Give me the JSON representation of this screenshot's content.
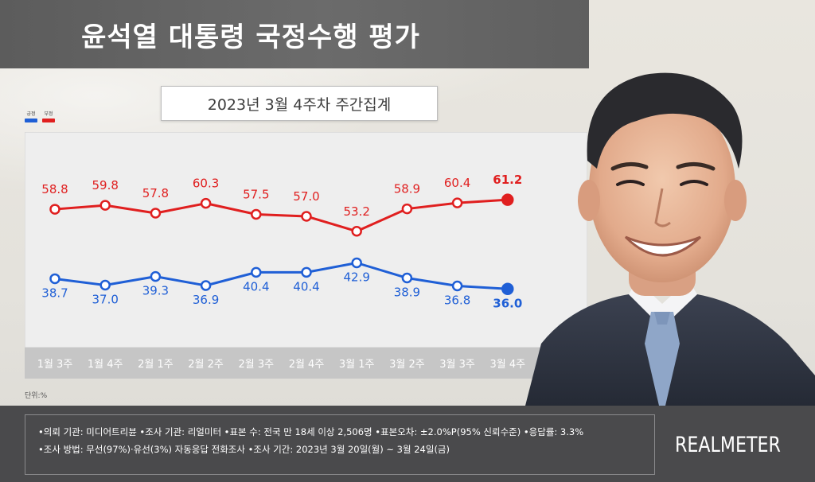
{
  "header": {
    "title": "윤석열 대통령 국정수행 평가",
    "subtitle": "2023년 3월 4주차 주간집계"
  },
  "legend": {
    "positive_label": "긍정",
    "negative_label": "부정"
  },
  "colors": {
    "positive": "#1f5fd6",
    "negative": "#e01f1f",
    "axis_band": "#c6c6c6"
  },
  "unit_label": "단위:%",
  "chart_data": {
    "type": "line",
    "categories": [
      "1월 3주",
      "1월 4주",
      "2월 1주",
      "2월 2주",
      "2월 3주",
      "2월 4주",
      "3월 1주",
      "3월 2주",
      "3월 3주",
      "3월 4주"
    ],
    "series": [
      {
        "name": "부정",
        "color": "#e01f1f",
        "values": [
          58.8,
          59.8,
          57.8,
          60.3,
          57.5,
          57.0,
          53.2,
          58.9,
          60.4,
          61.2
        ]
      },
      {
        "name": "긍정",
        "color": "#1f5fd6",
        "values": [
          38.7,
          37.0,
          39.3,
          36.9,
          40.4,
          40.4,
          42.9,
          38.9,
          36.8,
          36.0
        ]
      }
    ],
    "grid": false
  },
  "footer": {
    "line1": "•의뢰 기관: 미디어트리뷴 •조사 기관: 리얼미터 •표본 수: 전국 만 18세 이상 2,506명 •표본오차: ±2.0%P(95% 신뢰수준) •응답률: 3.3%",
    "line2": "•조사 방법: 무선(97%)·유선(3%) 자동응답 전화조사 •조사 기간: 2023년 3월 20일(월) ~ 3월 24일(금)",
    "brand": "REALMETER"
  }
}
